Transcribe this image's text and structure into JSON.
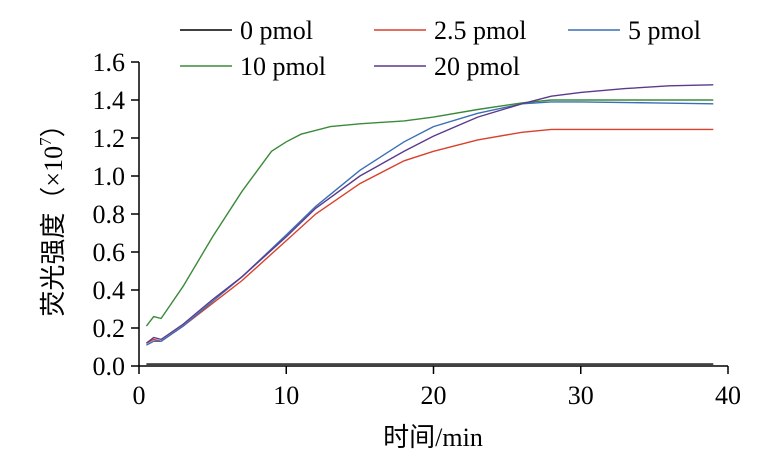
{
  "chart_data": {
    "type": "line",
    "xlabel": "时间/min",
    "ylabel": "荧光强度（×10",
    "ylabel_superscript": "7",
    "ylabel_suffix": "）",
    "xlim": [
      0,
      40
    ],
    "ylim": [
      0.0,
      1.6
    ],
    "x_ticks": [
      "0",
      "10",
      "20",
      "30",
      "40"
    ],
    "y_ticks": [
      "0.0",
      "0.2",
      "0.4",
      "0.6",
      "0.8",
      "1.0",
      "1.2",
      "1.4",
      "1.6"
    ],
    "grid": false,
    "legend_position": "top",
    "series": [
      {
        "name": "0 pmol",
        "color": "#000000",
        "points": [
          [
            0.5,
            0.01
          ],
          [
            10,
            0.01
          ],
          [
            20,
            0.01
          ],
          [
            30,
            0.01
          ],
          [
            39,
            0.01
          ]
        ]
      },
      {
        "name": "2.5 pmol",
        "color": "#d9412b",
        "points": [
          [
            0.5,
            0.12
          ],
          [
            1.0,
            0.14
          ],
          [
            1.5,
            0.13
          ],
          [
            3,
            0.21
          ],
          [
            5,
            0.33
          ],
          [
            7,
            0.45
          ],
          [
            10,
            0.66
          ],
          [
            12,
            0.8
          ],
          [
            15,
            0.96
          ],
          [
            18,
            1.08
          ],
          [
            20,
            1.13
          ],
          [
            23,
            1.19
          ],
          [
            26,
            1.23
          ],
          [
            28,
            1.245
          ],
          [
            30,
            1.245
          ],
          [
            35,
            1.245
          ],
          [
            39,
            1.245
          ]
        ]
      },
      {
        "name": "5 pmol",
        "color": "#3a6fb5",
        "points": [
          [
            0.5,
            0.11
          ],
          [
            1.0,
            0.13
          ],
          [
            1.5,
            0.13
          ],
          [
            3,
            0.21
          ],
          [
            5,
            0.34
          ],
          [
            7,
            0.47
          ],
          [
            10,
            0.69
          ],
          [
            12,
            0.84
          ],
          [
            15,
            1.03
          ],
          [
            18,
            1.18
          ],
          [
            20,
            1.26
          ],
          [
            23,
            1.33
          ],
          [
            26,
            1.38
          ],
          [
            28,
            1.39
          ],
          [
            30,
            1.39
          ],
          [
            35,
            1.385
          ],
          [
            39,
            1.38
          ]
        ]
      },
      {
        "name": "10 pmol",
        "color": "#3b8a3a",
        "points": [
          [
            0.5,
            0.21
          ],
          [
            1.0,
            0.26
          ],
          [
            1.5,
            0.25
          ],
          [
            3,
            0.42
          ],
          [
            5,
            0.68
          ],
          [
            7,
            0.92
          ],
          [
            9,
            1.13
          ],
          [
            10,
            1.18
          ],
          [
            11,
            1.22
          ],
          [
            13,
            1.26
          ],
          [
            15,
            1.275
          ],
          [
            18,
            1.29
          ],
          [
            20,
            1.31
          ],
          [
            23,
            1.35
          ],
          [
            26,
            1.385
          ],
          [
            28,
            1.4
          ],
          [
            30,
            1.4
          ],
          [
            35,
            1.4
          ],
          [
            39,
            1.4
          ]
        ]
      },
      {
        "name": "20 pmol",
        "color": "#5b3a8c",
        "points": [
          [
            0.5,
            0.12
          ],
          [
            1.0,
            0.15
          ],
          [
            1.5,
            0.14
          ],
          [
            3,
            0.22
          ],
          [
            5,
            0.35
          ],
          [
            7,
            0.47
          ],
          [
            10,
            0.68
          ],
          [
            12,
            0.83
          ],
          [
            15,
            1.0
          ],
          [
            18,
            1.13
          ],
          [
            20,
            1.21
          ],
          [
            23,
            1.31
          ],
          [
            26,
            1.38
          ],
          [
            28,
            1.42
          ],
          [
            30,
            1.44
          ],
          [
            33,
            1.46
          ],
          [
            36,
            1.475
          ],
          [
            39,
            1.48
          ]
        ]
      }
    ]
  }
}
